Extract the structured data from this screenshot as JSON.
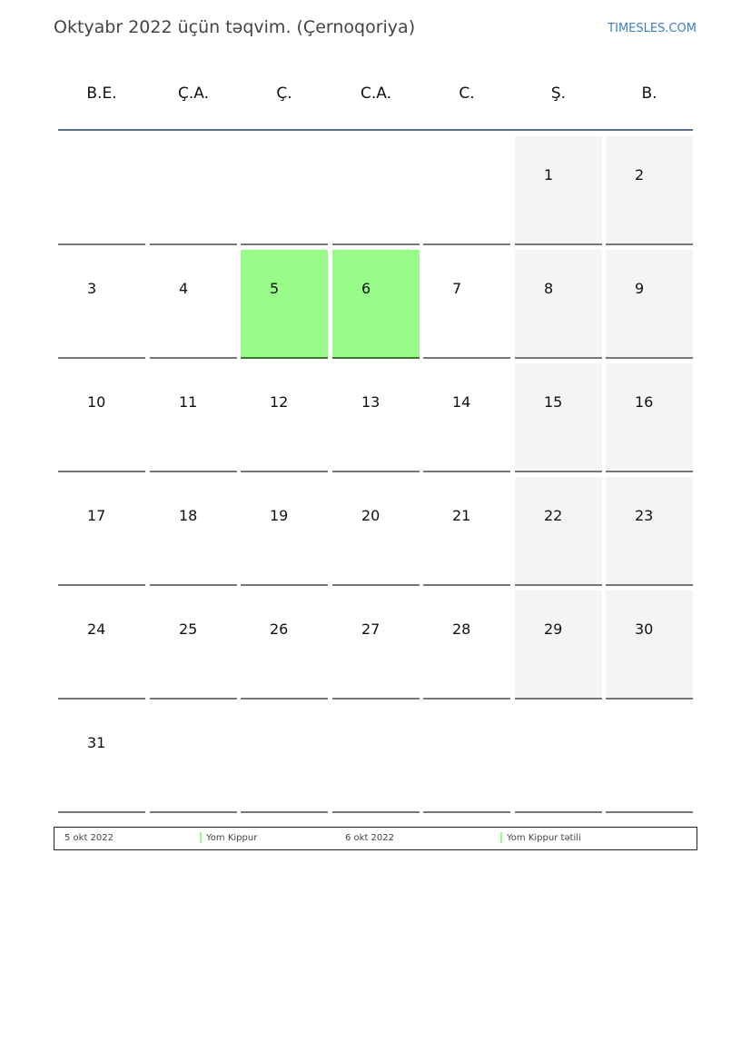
{
  "header": {
    "title": "Oktyabr 2022 üçün təqvim. (Çernoqoriya)",
    "brand": "TIMESLES.COM"
  },
  "weekdays": [
    "B.E.",
    "Ç.A.",
    "Ç.",
    "C.A.",
    "C.",
    "Ş.",
    "B."
  ],
  "weeks": [
    [
      null,
      null,
      null,
      null,
      null,
      1,
      2
    ],
    [
      3,
      4,
      5,
      6,
      7,
      8,
      9
    ],
    [
      10,
      11,
      12,
      13,
      14,
      15,
      16
    ],
    [
      17,
      18,
      19,
      20,
      21,
      22,
      23
    ],
    [
      24,
      25,
      26,
      27,
      28,
      29,
      30
    ],
    [
      31,
      null,
      null,
      null,
      null,
      null,
      null
    ]
  ],
  "holidays": [
    5,
    6
  ],
  "colors": {
    "holiday": "#99fb88",
    "weekend": "#f4f4f4",
    "brand": "#3a7fc4"
  },
  "legend": [
    {
      "date": "5 okt 2022",
      "name": "Yom Kippur"
    },
    {
      "date": "6 okt 2022",
      "name": "Yom Kippur tətili"
    }
  ]
}
